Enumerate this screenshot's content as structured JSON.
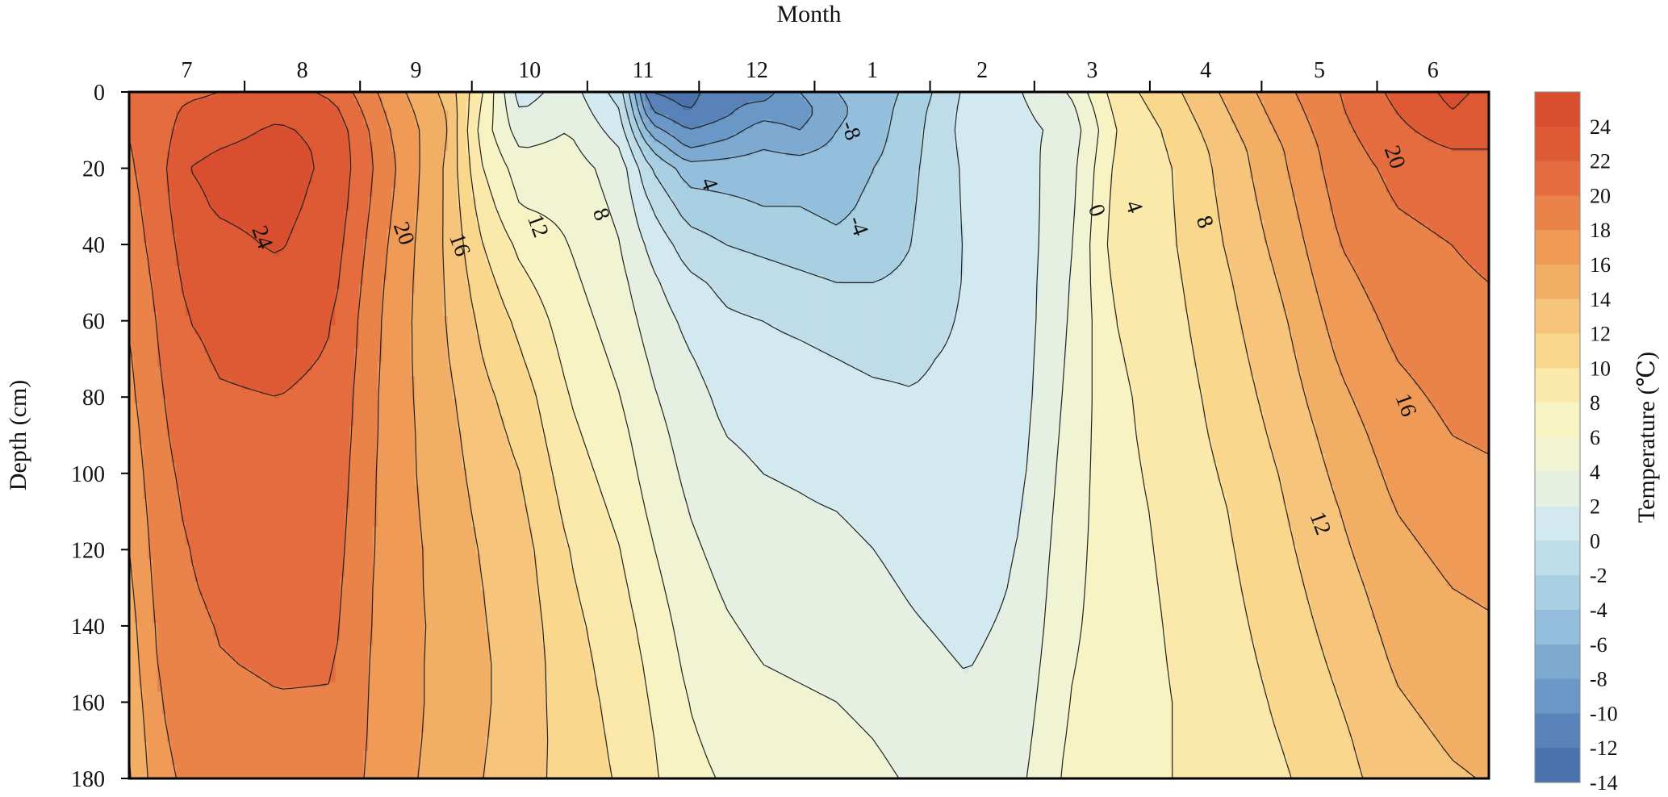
{
  "chart_data": {
    "type": "heatmap",
    "title": "",
    "xlabel": "Month",
    "ylabel": "Depth (cm)",
    "colorbar_label": "Temperature (℃)",
    "x_position": "top",
    "months": [
      "7",
      "8",
      "9",
      "10",
      "11",
      "12",
      "1",
      "2",
      "3",
      "4",
      "5",
      "6"
    ],
    "y_ticks": [
      0,
      20,
      40,
      60,
      80,
      100,
      120,
      140,
      160,
      180
    ],
    "ylim": [
      0,
      180
    ],
    "y_inverted": true,
    "colorbar_levels": [
      -14,
      -12,
      -10,
      -8,
      -6,
      -4,
      -2,
      0,
      2,
      4,
      6,
      8,
      10,
      12,
      14,
      16,
      18,
      20,
      22,
      24,
      26
    ],
    "colorbar_tick_labels": [
      24,
      22,
      20,
      18,
      16,
      14,
      12,
      10,
      8,
      6,
      4,
      2,
      0,
      -2,
      -4,
      -6,
      -8,
      -10,
      -12,
      -14
    ],
    "colormap": [
      "#4a73ad",
      "#5882b8",
      "#6a98c6",
      "#7eaad2",
      "#93bfdc",
      "#a9cfe2",
      "#bfdde8",
      "#d2e9ef",
      "#e5efe2",
      "#f0f4d2",
      "#f8f3c2",
      "#fae9aa",
      "#f9d88e",
      "#f6c47a",
      "#f3ae66",
      "#ef9a57",
      "#ea8349",
      "#e56c3f",
      "#de5a35",
      "#d84e2f"
    ],
    "month_day_axis": [
      0,
      31,
      62,
      92,
      123,
      153,
      184,
      215,
      243,
      274,
      304,
      335,
      365
    ],
    "profile_days": [
      0,
      8,
      16,
      24,
      40,
      55,
      70,
      85,
      95,
      105,
      118,
      132,
      140,
      150,
      160,
      170,
      180,
      190,
      200,
      210,
      225,
      240,
      252,
      265,
      280,
      295,
      310,
      325,
      340,
      355,
      365
    ],
    "depths": [
      0,
      5,
      10,
      15,
      20,
      30,
      40,
      50,
      60,
      70,
      80,
      90,
      100,
      110,
      120,
      130,
      140,
      150,
      160,
      170,
      180
    ],
    "temperature": [
      [
        20.5,
        20.3,
        20.1,
        19.9,
        19.7,
        19.3,
        19.0,
        18.6,
        18.2,
        17.8,
        17.5,
        17.1,
        16.7,
        16.4,
        16.0,
        15.6,
        15.2,
        14.9,
        14.5,
        14.1,
        13.8
      ],
      [
        21.0,
        21.0,
        21.1,
        21.2,
        21.3,
        21.1,
        20.8,
        20.5,
        20.2,
        20.0,
        19.8,
        19.6,
        19.4,
        19.1,
        18.9,
        18.7,
        18.4,
        18.2,
        17.9,
        17.6,
        17.3
      ],
      [
        21.5,
        22.5,
        23.0,
        23.5,
        24.0,
        23.5,
        23.0,
        22.5,
        22.0,
        21.5,
        21.0,
        20.8,
        20.5,
        20.3,
        20.0,
        19.8,
        19.5,
        19.2,
        19.0,
        18.8,
        18.5
      ],
      [
        22.0,
        22.8,
        23.3,
        24.0,
        24.5,
        24.2,
        23.5,
        23.0,
        22.5,
        22.2,
        21.8,
        21.5,
        21.2,
        20.9,
        20.6,
        20.4,
        20.1,
        19.9,
        19.6,
        19.4,
        19.1
      ],
      [
        23.0,
        23.5,
        24.3,
        24.7,
        24.9,
        24.6,
        24.2,
        23.5,
        23.0,
        22.5,
        22.0,
        21.7,
        21.5,
        21.2,
        21.0,
        20.7,
        20.4,
        20.2,
        19.9,
        19.7,
        19.5
      ],
      [
        21.5,
        22.5,
        23.3,
        23.5,
        23.5,
        23.2,
        22.8,
        22.4,
        22.0,
        21.8,
        21.5,
        21.3,
        21.1,
        20.9,
        20.7,
        20.5,
        20.3,
        20.1,
        19.9,
        19.7,
        19.5
      ],
      [
        17.0,
        17.5,
        18.0,
        18.3,
        18.5,
        18.2,
        17.8,
        17.5,
        17.3,
        17.2,
        17.1,
        17.1,
        17.0,
        17.0,
        17.0,
        16.9,
        16.9,
        16.8,
        16.8,
        16.8,
        16.7
      ],
      [
        13.5,
        14.0,
        14.2,
        14.0,
        13.8,
        13.8,
        13.8,
        13.9,
        14.0,
        14.2,
        14.5,
        14.7,
        14.9,
        15.1,
        15.3,
        15.4,
        15.5,
        15.5,
        15.5,
        15.4,
        15.3
      ],
      [
        8.0,
        7.5,
        7.0,
        7.5,
        8.0,
        9.0,
        10.0,
        10.8,
        11.5,
        12.0,
        12.5,
        12.9,
        13.2,
        13.5,
        13.8,
        14.0,
        14.1,
        14.2,
        14.2,
        14.1,
        14.0
      ],
      [
        1.0,
        2.0,
        3.0,
        4.0,
        5.0,
        6.0,
        7.5,
        8.5,
        9.5,
        10.2,
        11.0,
        11.5,
        12.0,
        12.4,
        12.8,
        13.0,
        13.2,
        13.3,
        13.3,
        13.3,
        13.2
      ],
      [
        3.0,
        3.5,
        4.0,
        4.5,
        5.0,
        5.5,
        6.0,
        6.5,
        7.0,
        7.5,
        8.0,
        8.5,
        9.0,
        9.5,
        10.0,
        10.3,
        10.6,
        10.8,
        10.9,
        11.0,
        11.0
      ],
      [
        -1.0,
        0.0,
        1.0,
        2.0,
        3.0,
        3.5,
        4.0,
        4.5,
        5.0,
        5.5,
        6.0,
        6.5,
        7.0,
        7.5,
        8.0,
        8.4,
        8.8,
        9.1,
        9.4,
        9.6,
        9.8
      ],
      [
        -12.0,
        -10.0,
        -7.0,
        -4.0,
        -2.0,
        0.0,
        1.5,
        2.5,
        3.2,
        3.8,
        4.3,
        4.8,
        5.2,
        5.7,
        6.2,
        6.7,
        7.2,
        7.6,
        7.9,
        8.2,
        8.4
      ],
      [
        -13.0,
        -12.0,
        -10.0,
        -8.0,
        -5.0,
        -3.0,
        -1.0,
        0.5,
        1.5,
        2.2,
        2.8,
        3.2,
        3.6,
        4.0,
        4.4,
        4.8,
        5.2,
        5.6,
        6.0,
        6.3,
        6.6
      ],
      [
        -10.0,
        -10.5,
        -9.0,
        -7.0,
        -5.0,
        -3.5,
        -2.0,
        -0.5,
        0.3,
        1.0,
        1.5,
        2.0,
        2.5,
        3.0,
        3.4,
        3.8,
        4.2,
        4.6,
        5.0,
        5.4,
        5.8
      ],
      [
        -11.0,
        -9.0,
        -7.0,
        -6.0,
        -5.0,
        -4.0,
        -2.5,
        -1.0,
        0.0,
        0.8,
        1.2,
        1.6,
        2.0,
        2.4,
        2.8,
        3.2,
        3.6,
        4.0,
        4.4,
        4.8,
        5.2
      ],
      [
        -8.0,
        -9.0,
        -8.0,
        -6.5,
        -5.0,
        -4.0,
        -3.0,
        -1.5,
        -0.5,
        0.5,
        1.0,
        1.4,
        1.8,
        2.2,
        2.6,
        3.0,
        3.4,
        3.8,
        4.2,
        4.6,
        5.0
      ],
      [
        -6.0,
        -6.5,
        -6.0,
        -5.5,
        -5.0,
        -4.5,
        -3.5,
        -2.0,
        -1.0,
        0.0,
        0.6,
        1.0,
        1.5,
        2.0,
        2.4,
        2.8,
        3.2,
        3.6,
        4.0,
        4.4,
        4.8
      ],
      [
        -5.0,
        -5.0,
        -4.8,
        -4.5,
        -4.0,
        -3.5,
        -3.0,
        -2.0,
        -1.2,
        -0.3,
        0.3,
        0.8,
        1.2,
        1.6,
        2.0,
        2.4,
        2.8,
        3.2,
        3.6,
        4.0,
        4.4
      ],
      [
        -3.5,
        -3.0,
        -2.8,
        -2.6,
        -2.4,
        -2.2,
        -2.0,
        -1.6,
        -1.0,
        -0.3,
        0.1,
        0.5,
        0.8,
        1.0,
        1.4,
        1.8,
        2.2,
        2.6,
        3.0,
        3.4,
        3.8
      ],
      [
        0.5,
        0.7,
        0.8,
        0.6,
        0.4,
        0.3,
        0.2,
        0.2,
        0.3,
        0.4,
        0.5,
        0.6,
        0.7,
        0.8,
        0.9,
        1.0,
        1.5,
        1.9,
        2.3,
        2.7,
        3.1
      ],
      [
        2.0,
        1.8,
        1.6,
        1.5,
        1.4,
        1.3,
        1.2,
        1.2,
        1.2,
        1.3,
        1.4,
        1.6,
        1.8,
        2.0,
        2.2,
        2.4,
        2.6,
        2.9,
        3.2,
        3.5,
        3.8
      ],
      [
        4.0,
        3.0,
        2.5,
        2.8,
        3.0,
        3.2,
        3.5,
        3.8,
        4.0,
        4.2,
        4.4,
        4.6,
        4.8,
        5.0,
        5.2,
        5.4,
        5.6,
        5.8,
        6.0,
        6.2,
        6.4
      ],
      [
        9.0,
        8.5,
        8.0,
        8.2,
        8.5,
        8.8,
        9.0,
        8.5,
        8.0,
        7.8,
        7.6,
        7.5,
        7.4,
        7.3,
        7.2,
        7.1,
        7.0,
        7.0,
        7.0,
        7.0,
        7.0
      ],
      [
        11.5,
        11.0,
        10.5,
        10.2,
        10.0,
        9.9,
        9.8,
        9.6,
        9.4,
        9.2,
        9.0,
        8.9,
        8.7,
        8.5,
        8.4,
        8.3,
        8.2,
        8.1,
        8.0,
        8.0,
        8.0
      ],
      [
        14.5,
        14.0,
        13.5,
        13.0,
        12.8,
        12.5,
        12.2,
        11.8,
        11.5,
        11.2,
        10.9,
        10.6,
        10.3,
        10.0,
        9.8,
        9.6,
        9.4,
        9.2,
        9.0,
        8.9,
        8.8
      ],
      [
        17.5,
        17.0,
        16.5,
        16.0,
        15.8,
        15.3,
        14.8,
        14.3,
        13.8,
        13.4,
        13.0,
        12.6,
        12.2,
        11.9,
        11.6,
        11.3,
        11.0,
        10.7,
        10.4,
        10.1,
        9.8
      ],
      [
        20.0,
        19.8,
        19.5,
        19.2,
        19.0,
        18.5,
        18.0,
        17.4,
        16.8,
        16.2,
        15.6,
        15.0,
        14.5,
        14.0,
        13.6,
        13.2,
        12.8,
        12.4,
        12.0,
        11.6,
        11.3
      ],
      [
        22.5,
        22.0,
        21.5,
        21.0,
        20.5,
        20.0,
        19.5,
        19.0,
        18.5,
        18.0,
        17.5,
        17.0,
        16.5,
        16.0,
        15.5,
        15.0,
        14.6,
        14.2,
        13.8,
        13.4,
        13.0
      ],
      [
        24.5,
        24.0,
        23.0,
        22.0,
        21.0,
        20.5,
        20.0,
        19.6,
        19.2,
        18.8,
        18.4,
        18.0,
        17.6,
        17.0,
        16.5,
        16.0,
        15.5,
        15.0,
        14.6,
        14.2,
        13.8
      ],
      [
        23.5,
        23.0,
        22.5,
        22.0,
        21.5,
        21.0,
        20.5,
        20.0,
        19.5,
        19.0,
        18.6,
        18.2,
        17.8,
        17.3,
        16.8,
        16.3,
        15.8,
        15.3,
        14.9,
        14.5,
        14.1
      ]
    ],
    "contour_labels": [
      {
        "text": "24",
        "day": 36,
        "depth": 38
      },
      {
        "text": "20",
        "day": 74,
        "depth": 37
      },
      {
        "text": "16",
        "day": 89,
        "depth": 40
      },
      {
        "text": "12",
        "day": 110,
        "depth": 35
      },
      {
        "text": "8",
        "day": 127,
        "depth": 32
      },
      {
        "text": "4",
        "day": 156,
        "depth": 24
      },
      {
        "text": "-8",
        "day": 194,
        "depth": 10
      },
      {
        "text": "-4",
        "day": 196,
        "depth": 35
      },
      {
        "text": "0",
        "day": 260,
        "depth": 31
      },
      {
        "text": "4",
        "day": 270,
        "depth": 30
      },
      {
        "text": "8",
        "day": 289,
        "depth": 34
      },
      {
        "text": "8",
        "day": 289,
        "depth": 34
      },
      {
        "text": "20",
        "day": 340,
        "depth": 17
      },
      {
        "text": "16",
        "day": 343,
        "depth": 82
      },
      {
        "text": "12",
        "day": 320,
        "depth": 113
      }
    ]
  }
}
